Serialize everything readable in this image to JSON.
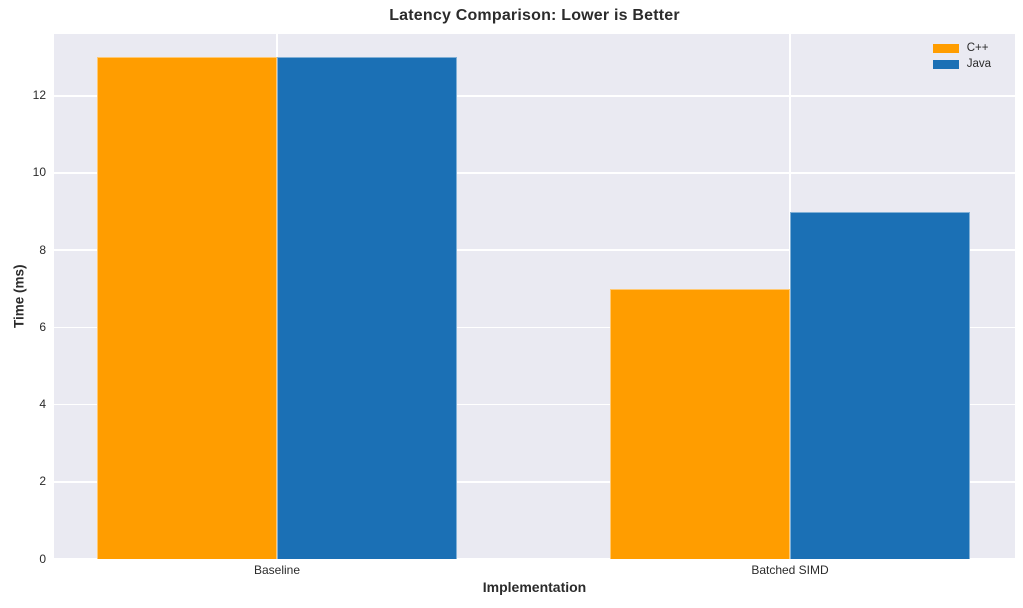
{
  "chart_data": {
    "type": "bar",
    "title": "Latency Comparison: Lower is Better",
    "xlabel": "Implementation",
    "ylabel": "Time (ms)",
    "categories": [
      "Baseline",
      "Batched SIMD"
    ],
    "series": [
      {
        "name": "C++",
        "color": "#FF9D00",
        "values": [
          13,
          7
        ]
      },
      {
        "name": "Java",
        "color": "#1B70B5",
        "values": [
          13,
          9
        ]
      }
    ],
    "ylim": [
      0,
      13.6
    ],
    "yticks": [
      0,
      2,
      4,
      6,
      8,
      10,
      12
    ],
    "grid": true,
    "grid_axis": "both",
    "legend_position": "upper right",
    "colors": {
      "plot_background": "#EAEAF2",
      "figure_background": "#FFFFFF",
      "gridline": "#FFFFFF",
      "text": "#2B2B2B"
    }
  }
}
